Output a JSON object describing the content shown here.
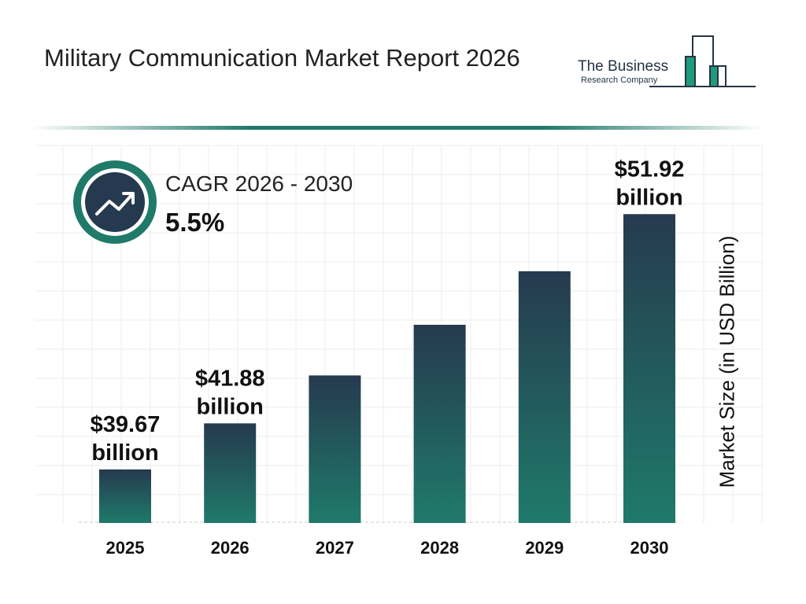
{
  "header": {
    "title": "Military Communication Market Report 2026",
    "logo_line1": "The Business",
    "logo_line2": "Research Company"
  },
  "cagr": {
    "label": "CAGR 2026 - 2030",
    "value": "5.5%",
    "icon": "trend-up-arrow-icon"
  },
  "colors": {
    "bar_top": "#263a4f",
    "bar_bottom": "#1f7a6a",
    "accent": "#1f7a6a"
  },
  "chart_data": {
    "type": "bar",
    "categories": [
      "2025",
      "2026",
      "2027",
      "2028",
      "2029",
      "2030"
    ],
    "values": [
      39.67,
      41.88,
      44.18,
      46.61,
      49.18,
      51.92
    ],
    "data_labels": [
      "$39.67\nbillion",
      "$41.88\nbillion",
      "",
      "",
      "",
      "$51.92\nbillion"
    ],
    "ylabel": "Market Size (in USD Billion)",
    "xlabel": "",
    "grid": true
  }
}
